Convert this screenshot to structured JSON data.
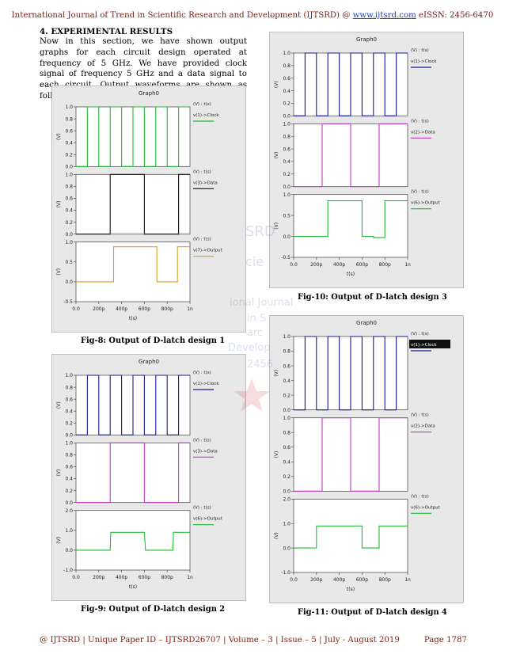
{
  "header": {
    "journal": "International Journal of Trend in Scientific Research and Development (IJTSRD) @ ",
    "url": "www.ijtsrd.com",
    "issn": " eISSN: 2456-6470"
  },
  "section": {
    "heading": "4.   EXPERIMENTAL RESULTS",
    "paragraph": "Now in this section, we have shown output graphs for each circuit design operated at frequency of 5 GHz. We have provided clock signal of frequency 5 GHz and a data signal to each circuit. Output waveforms are shown as follows:"
  },
  "watermark": {
    "lines": [
      "SRD",
      "cie",
      "ional Journal",
      "in S",
      "arc",
      "Develop",
      "2456"
    ]
  },
  "figures": [
    {
      "id": "fig8",
      "caption": "Fig-8: Output of D-latch design 1",
      "title": "Graph0",
      "x_axis": {
        "label": "t(s)",
        "ticks": [
          "0.0",
          "200p",
          "400p",
          "600p",
          "800p",
          "1n"
        ]
      },
      "panels": [
        {
          "axis_label": "(V) : t(s)",
          "legend": "v(1)->Clock",
          "color": "#22bb33",
          "ticks": [
            "1.0",
            "0.8",
            "0.6",
            "0.4",
            "0.2",
            "0.0"
          ],
          "ylim": [
            0,
            1.0
          ]
        },
        {
          "axis_label": "(V) : t(s)",
          "legend": "v(3)->Data",
          "color": "#111111",
          "ticks": [
            "1.0",
            "0.8",
            "0.6",
            "0.4",
            "0.2",
            "0.0"
          ],
          "ylim": [
            0,
            1.0
          ]
        },
        {
          "axis_label": "(V) : t(s)",
          "legend": "v(7)->Output",
          "color": "#d4a020",
          "ticks": [
            "1.0",
            "0.5",
            "0.0",
            "-0.5"
          ],
          "ylim": [
            -0.5,
            1.0
          ]
        }
      ]
    },
    {
      "id": "fig9",
      "caption": "Fig-9: Output of D-latch design 2",
      "title": "Graph0",
      "x_axis": {
        "label": "t(s)",
        "ticks": [
          "0.0",
          "200p",
          "400p",
          "600p",
          "800p",
          "1n"
        ]
      },
      "panels": [
        {
          "axis_label": "(V) : t(s)",
          "legend": "v(1)->Clock",
          "color": "#1a1a9a",
          "ticks": [
            "1.0",
            "0.8",
            "0.6",
            "0.4",
            "0.2",
            "0.0"
          ],
          "ylim": [
            0,
            1.0
          ]
        },
        {
          "axis_label": "(V) : t(s)",
          "legend": "v(3)->Data",
          "color": "#c23bc2",
          "ticks": [
            "1.0",
            "0.8",
            "0.6",
            "0.4",
            "0.2",
            "0.0"
          ],
          "ylim": [
            0,
            1.0
          ]
        },
        {
          "axis_label": "(V) : t(s)",
          "legend": "v(6)->Output",
          "color": "#22bb33",
          "ticks": [
            "2.0",
            "1.0",
            "0.0",
            "-1.0"
          ],
          "ylim": [
            -1.0,
            2.0
          ]
        }
      ]
    },
    {
      "id": "fig10",
      "caption": "Fig-10: Output of D-latch design 3",
      "title": "Graph0",
      "x_axis": {
        "label": "t(s)",
        "ticks": [
          "0.0",
          "200p",
          "400p",
          "600p",
          "800p",
          "1n"
        ]
      },
      "panels": [
        {
          "axis_label": "(V) : t(s)",
          "legend": "v(1)->Clock",
          "color": "#1a1a9a",
          "ticks": [
            "1.0",
            "0.8",
            "0.6",
            "0.4",
            "0.2",
            "0.0"
          ],
          "ylim": [
            0,
            1.0
          ]
        },
        {
          "axis_label": "(V) : t(s)",
          "legend": "v(2)->Data",
          "color": "#c23bc2",
          "ticks": [
            "1.0",
            "0.8",
            "0.6",
            "0.4",
            "0.2",
            "0.0"
          ],
          "ylim": [
            0,
            1.0
          ]
        },
        {
          "axis_label": "(V) : t(s)",
          "legend": "v(6)->Output",
          "color": "#22bb33",
          "ticks": [
            "1.0",
            "0.5",
            "0.0",
            "-0.5"
          ],
          "ylim": [
            -0.5,
            1.0
          ]
        }
      ]
    },
    {
      "id": "fig11",
      "caption": "Fig-11: Output of D-latch design 4",
      "title": "Graph0",
      "x_axis": {
        "label": "t(s)",
        "ticks": [
          "0.0",
          "200p",
          "400p",
          "600p",
          "800p",
          "1n"
        ]
      },
      "panels": [
        {
          "axis_label": "(V) : t(s)",
          "legend": "v(1)->Clock",
          "color": "#1a1a9a",
          "ticks": [
            "1.0",
            "0.8",
            "0.6",
            "0.4",
            "0.2",
            "0.0"
          ],
          "ylim": [
            0,
            1.0
          ],
          "highlight": true
        },
        {
          "axis_label": "(V) : t(s)",
          "legend": "v(2)->Data",
          "color": "#c23bc2",
          "ticks": [
            "1.0",
            "0.8",
            "0.6",
            "0.4",
            "0.2",
            "0.0"
          ],
          "ylim": [
            0,
            1.0
          ]
        },
        {
          "axis_label": "(V) : t(s)",
          "legend": "v(6)->Output",
          "color": "#22bb33",
          "ticks": [
            "2.0",
            "1.0",
            "0.0",
            "-1.0"
          ],
          "ylim": [
            -1.0,
            2.0
          ]
        }
      ]
    }
  ],
  "chart_data": [
    {
      "type": "line",
      "title": "Graph0",
      "xlabel": "t(s)",
      "xlim": [
        "0.0",
        "1n"
      ],
      "series": [
        {
          "name": "v(1)->Clock",
          "points": [
            [
              0,
              0
            ],
            [
              100,
              0
            ],
            [
              100,
              1
            ],
            [
              200,
              1
            ],
            [
              200,
              0
            ],
            [
              300,
              0
            ],
            [
              300,
              1
            ],
            [
              400,
              1
            ],
            [
              400,
              0
            ],
            [
              500,
              0
            ],
            [
              500,
              1
            ],
            [
              600,
              1
            ],
            [
              600,
              0
            ],
            [
              700,
              0
            ],
            [
              700,
              1
            ],
            [
              800,
              1
            ],
            [
              800,
              0
            ],
            [
              900,
              0
            ],
            [
              900,
              1
            ],
            [
              1000,
              1
            ]
          ]
        },
        {
          "name": "v(3)->Data",
          "points": [
            [
              0,
              0
            ],
            [
              300,
              0
            ],
            [
              300,
              1
            ],
            [
              600,
              1
            ],
            [
              600,
              0
            ],
            [
              900,
              0
            ],
            [
              900,
              1
            ],
            [
              1000,
              1
            ]
          ]
        },
        {
          "name": "v(7)->Output",
          "points": [
            [
              0,
              0
            ],
            [
              330,
              0
            ],
            [
              330,
              0.88
            ],
            [
              710,
              0.88
            ],
            [
              710,
              0
            ],
            [
              890,
              0
            ],
            [
              890,
              0.88
            ],
            [
              1000,
              0.88
            ]
          ]
        }
      ]
    },
    {
      "type": "line",
      "title": "Graph0",
      "xlabel": "t(s)",
      "xlim": [
        "0.0",
        "1n"
      ],
      "series": [
        {
          "name": "v(1)->Clock",
          "points": [
            [
              0,
              0
            ],
            [
              100,
              0
            ],
            [
              100,
              1
            ],
            [
              200,
              1
            ],
            [
              200,
              0
            ],
            [
              300,
              0
            ],
            [
              300,
              1
            ],
            [
              400,
              1
            ],
            [
              400,
              0
            ],
            [
              500,
              0
            ],
            [
              500,
              1
            ],
            [
              600,
              1
            ],
            [
              600,
              0
            ],
            [
              700,
              0
            ],
            [
              700,
              1
            ],
            [
              800,
              1
            ],
            [
              800,
              0
            ],
            [
              900,
              0
            ],
            [
              900,
              1
            ],
            [
              1000,
              1
            ]
          ]
        },
        {
          "name": "v(3)->Data",
          "points": [
            [
              0,
              0
            ],
            [
              300,
              0
            ],
            [
              300,
              1
            ],
            [
              600,
              1
            ],
            [
              600,
              0
            ],
            [
              900,
              0
            ],
            [
              900,
              1
            ],
            [
              1000,
              1
            ]
          ]
        },
        {
          "name": "v(6)->Output",
          "points": [
            [
              0,
              0
            ],
            [
              300,
              0
            ],
            [
              305,
              0.9
            ],
            [
              600,
              0.9
            ],
            [
              610,
              0
            ],
            [
              850,
              0
            ],
            [
              855,
              0.9
            ],
            [
              1000,
              0.9
            ]
          ]
        }
      ]
    },
    {
      "type": "line",
      "title": "Graph0",
      "xlabel": "t(s)",
      "xlim": [
        "0.0",
        "1n"
      ],
      "series": [
        {
          "name": "v(1)->Clock",
          "points": [
            [
              0,
              0
            ],
            [
              100,
              0
            ],
            [
              100,
              1
            ],
            [
              200,
              1
            ],
            [
              200,
              0
            ],
            [
              300,
              0
            ],
            [
              300,
              1
            ],
            [
              400,
              1
            ],
            [
              400,
              0
            ],
            [
              500,
              0
            ],
            [
              500,
              1
            ],
            [
              600,
              1
            ],
            [
              600,
              0
            ],
            [
              700,
              0
            ],
            [
              700,
              1
            ],
            [
              800,
              1
            ],
            [
              800,
              0
            ],
            [
              900,
              0
            ],
            [
              900,
              1
            ],
            [
              1000,
              1
            ]
          ]
        },
        {
          "name": "v(2)->Data",
          "points": [
            [
              0,
              0
            ],
            [
              250,
              0
            ],
            [
              250,
              1
            ],
            [
              500,
              1
            ],
            [
              500,
              0
            ],
            [
              750,
              0
            ],
            [
              750,
              1
            ],
            [
              1000,
              1
            ]
          ]
        },
        {
          "name": "v(6)->Output",
          "points": [
            [
              0,
              0
            ],
            [
              300,
              0
            ],
            [
              300,
              0.85
            ],
            [
              600,
              0.85
            ],
            [
              600,
              0
            ],
            [
              700,
              0
            ],
            [
              700,
              -0.03
            ],
            [
              800,
              -0.03
            ],
            [
              800,
              0.85
            ],
            [
              1000,
              0.85
            ]
          ]
        }
      ]
    },
    {
      "type": "line",
      "title": "Graph0",
      "xlabel": "t(s)",
      "xlim": [
        "0.0",
        "1n"
      ],
      "series": [
        {
          "name": "v(1)->Clock",
          "points": [
            [
              0,
              0
            ],
            [
              100,
              0
            ],
            [
              100,
              1
            ],
            [
              200,
              1
            ],
            [
              200,
              0
            ],
            [
              300,
              0
            ],
            [
              300,
              1
            ],
            [
              400,
              1
            ],
            [
              400,
              0
            ],
            [
              500,
              0
            ],
            [
              500,
              1
            ],
            [
              600,
              1
            ],
            [
              600,
              0
            ],
            [
              700,
              0
            ],
            [
              700,
              1
            ],
            [
              800,
              1
            ],
            [
              800,
              0
            ],
            [
              900,
              0
            ],
            [
              900,
              1
            ],
            [
              1000,
              1
            ]
          ]
        },
        {
          "name": "v(2)->Data",
          "points": [
            [
              0,
              0
            ],
            [
              250,
              0
            ],
            [
              250,
              1
            ],
            [
              500,
              1
            ],
            [
              500,
              0
            ],
            [
              750,
              0
            ],
            [
              750,
              1
            ],
            [
              1000,
              1
            ]
          ]
        },
        {
          "name": "v(6)->Output",
          "points": [
            [
              0,
              0
            ],
            [
              200,
              0
            ],
            [
              200,
              0.9
            ],
            [
              600,
              0.9
            ],
            [
              600,
              0
            ],
            [
              750,
              0
            ],
            [
              750,
              0.9
            ],
            [
              1000,
              0.9
            ]
          ]
        }
      ]
    }
  ],
  "footer": {
    "left": "@ IJTSRD    |    Unique Paper ID – IJTSRD26707    |    Volume – 3 | Issue – 5    |    July - August 2019",
    "right": "Page 1787"
  }
}
